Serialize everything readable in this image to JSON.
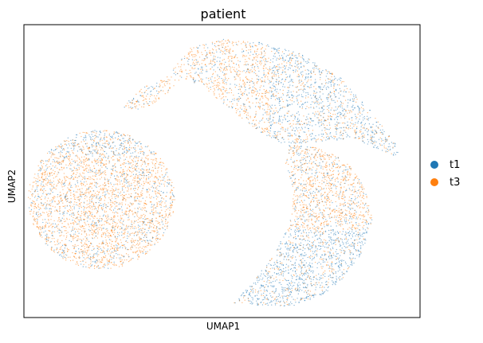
{
  "chart_data": {
    "type": "scatter",
    "title": "patient",
    "xlabel": "UMAP1",
    "ylabel": "UMAP2",
    "grid": false,
    "ticks": false,
    "legend_position": "right",
    "series": [
      {
        "name": "t1",
        "color": "#1f77b4"
      },
      {
        "name": "t3",
        "color": "#ff7f0e"
      }
    ],
    "clusters": [
      {
        "id": "left-blob",
        "shape": "blob",
        "center": [
          0.196,
          0.597
        ],
        "radius": [
          0.185,
          0.237
        ],
        "dominant": "t3",
        "t1_fraction": 0.25
      },
      {
        "id": "upper-crescent",
        "shape": "crescent",
        "dominant": "mixed",
        "t1_fraction": 0.45
      },
      {
        "id": "lower-right-lobe",
        "shape": "lobe",
        "dominant": "mixed",
        "t1_fraction": 0.5
      }
    ]
  }
}
